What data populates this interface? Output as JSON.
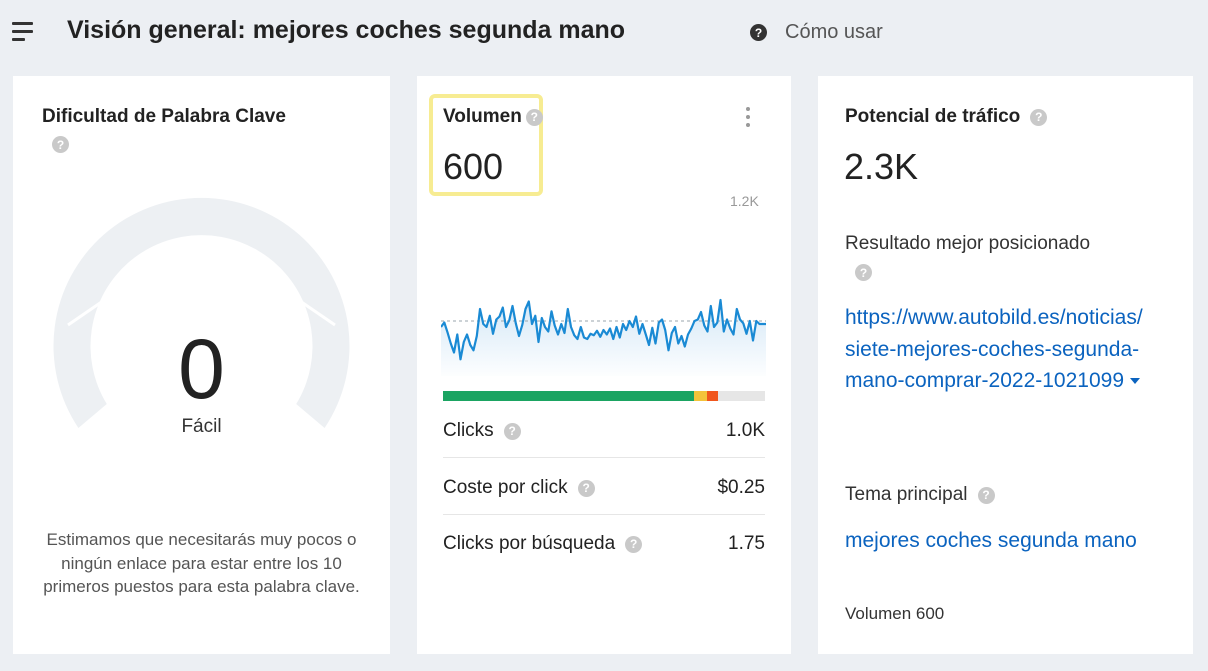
{
  "header": {
    "title": "Visión general: mejores coches segunda mano",
    "help_icon": "?",
    "help_link": "Cómo usar",
    "menu_icon": "hamburger-menu-icon"
  },
  "keyword_difficulty": {
    "title": "Dificultad de Palabra Clave",
    "help_icon": "?",
    "value": "0",
    "label": "Fácil",
    "description": "Estimamos que necesitarás muy pocos o ningún enlace para estar entre los 10 primeros puestos para esta palabra clave.",
    "gauge_fill_fraction": 0,
    "gauge_track_color": "#edf0f3"
  },
  "volume": {
    "title": "Volumen",
    "help_icon": "?",
    "value": "600",
    "highlight_color": "#f7ec92",
    "chart_data": {
      "type": "area",
      "y_max_label": "1.2K",
      "ylim": [
        0,
        1200
      ],
      "average_line": 600,
      "line_color": "#1a8ad4",
      "values": [
        520,
        580,
        450,
        300,
        180,
        420,
        90,
        320,
        420,
        280,
        210,
        400,
        760,
        560,
        520,
        670,
        430,
        620,
        660,
        780,
        520,
        610,
        800,
        570,
        400,
        550,
        760,
        860,
        560,
        670,
        320,
        640,
        520,
        460,
        730,
        540,
        420,
        560,
        440,
        760,
        520,
        410,
        360,
        520,
        380,
        360,
        430,
        410,
        470,
        390,
        480,
        420,
        500,
        360,
        520,
        380,
        560,
        480,
        600,
        520,
        660,
        430,
        560,
        420,
        280,
        510,
        300,
        580,
        620,
        480,
        210,
        440,
        520,
        300,
        400,
        260,
        420,
        500,
        600,
        620,
        720,
        540,
        460,
        800,
        520,
        580,
        880,
        460,
        620,
        500,
        420,
        760,
        620,
        570,
        430,
        600,
        340,
        600,
        560,
        560,
        560
      ]
    },
    "cpc_distribution": [
      {
        "color": "#1ba462",
        "share": 0.78
      },
      {
        "color": "#f4c33a",
        "share": 0.04
      },
      {
        "color": "#f0561d",
        "share": 0.035
      },
      {
        "color": "#e6e6e6",
        "share": 0.145
      }
    ],
    "metrics": [
      {
        "label": "Clicks",
        "help_icon": "?",
        "value": "1.0K"
      },
      {
        "label": "Coste por click",
        "help_icon": "?",
        "value": "$0.25"
      },
      {
        "label": "Clicks por búsqueda",
        "help_icon": "?",
        "value": "1.75"
      }
    ]
  },
  "traffic_potential": {
    "title": "Potencial de tráfico",
    "help_icon": "?",
    "value": "2.3K",
    "top_result_label": "Resultado mejor posicionado",
    "top_result_url": "https://www.autobild.es/noticias/siete-mejores-coches-segunda-mano-comprar-2022-1021099",
    "parent_topic_label": "Tema principal",
    "parent_topic": "mejores coches segunda mano",
    "parent_topic_volume": "Volumen 600"
  }
}
